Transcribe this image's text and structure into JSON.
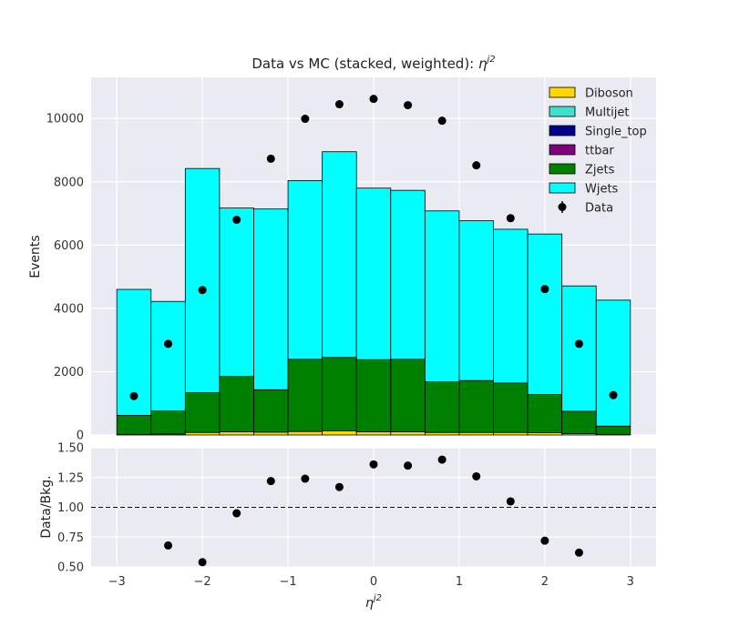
{
  "colors": {
    "Diboson": "#FFD700",
    "Multijet": "#40E0D0",
    "Single_top": "#00008B",
    "ttbar": "#800080",
    "Zjets": "#008000",
    "Wjets": "#00FFFF",
    "data_marker": "#000000",
    "plot_bg": "#EAEAF2",
    "grid": "#FFFFFF"
  },
  "chart_data": [
    {
      "type": "bar",
      "stacked": true,
      "title_main": "Data vs MC (stacked, weighted): ",
      "title_var": "η",
      "title_sup": "j2",
      "ylabel": "Events",
      "ylim": [
        0,
        11300
      ],
      "xlim": [
        -3.3,
        3.3
      ],
      "yticks": [
        0,
        2000,
        4000,
        6000,
        8000,
        10000
      ],
      "grid": true,
      "legend_position": "top-right",
      "bin_edges": [
        -3.0,
        -2.6,
        -2.2,
        -1.8,
        -1.4,
        -1.0,
        -0.6,
        -0.2,
        0.2,
        0.6,
        1.0,
        1.4,
        1.8,
        2.2,
        2.6,
        3.0
      ],
      "series": [
        {
          "name": "Diboson",
          "values": [
            20,
            30,
            80,
            100,
            90,
            110,
            130,
            100,
            100,
            80,
            80,
            80,
            70,
            40,
            20
          ]
        },
        {
          "name": "Multijet",
          "values": [
            0,
            0,
            0,
            0,
            0,
            0,
            0,
            0,
            0,
            0,
            0,
            0,
            0,
            0,
            0
          ]
        },
        {
          "name": "Single_top",
          "values": [
            0,
            0,
            0,
            0,
            0,
            0,
            0,
            0,
            0,
            0,
            0,
            0,
            0,
            0,
            0
          ]
        },
        {
          "name": "ttbar",
          "values": [
            0,
            0,
            0,
            0,
            0,
            0,
            0,
            0,
            0,
            0,
            0,
            0,
            0,
            0,
            0
          ]
        },
        {
          "name": "Zjets",
          "values": [
            600,
            730,
            1260,
            1750,
            1340,
            2280,
            2320,
            2280,
            2290,
            1600,
            1640,
            1560,
            1210,
            710,
            260
          ]
        },
        {
          "name": "Wjets",
          "values": [
            3980,
            3460,
            7080,
            5320,
            5710,
            5650,
            6500,
            5420,
            5340,
            5400,
            5050,
            4860,
            5070,
            3960,
            3980
          ]
        }
      ],
      "data": {
        "name": "Data",
        "x": [
          -2.8,
          -2.4,
          -2.0,
          -1.6,
          -1.2,
          -0.8,
          -0.4,
          0.0,
          0.4,
          0.8,
          1.2,
          1.6,
          2.0,
          2.4,
          2.8
        ],
        "y": [
          1230,
          2880,
          4580,
          6800,
          8730,
          9990,
          10450,
          10620,
          10420,
          9930,
          8520,
          6850,
          4610,
          2880,
          1260
        ]
      }
    },
    {
      "type": "scatter",
      "ylabel": "Data/Bkg.",
      "xlabel_var": "η",
      "xlabel_sup": "j2",
      "ylim": [
        0.5,
        1.5
      ],
      "yticks": [
        "0.50",
        "0.75",
        "1.00",
        "1.25",
        "1.50"
      ],
      "ytick_values": [
        0.5,
        0.75,
        1.0,
        1.25,
        1.5
      ],
      "xticks": [
        "−3",
        "−2",
        "−1",
        "0",
        "1",
        "2",
        "3"
      ],
      "xtick_values": [
        -3,
        -2,
        -1,
        0,
        1,
        2,
        3
      ],
      "reference_line": 1.0,
      "x": [
        -2.4,
        -2.0,
        -1.6,
        -1.2,
        -0.8,
        -0.4,
        0.0,
        0.4,
        0.8,
        1.2,
        1.6,
        2.0,
        2.4
      ],
      "y": [
        0.68,
        0.54,
        0.95,
        1.22,
        1.24,
        1.17,
        1.36,
        1.35,
        1.4,
        1.26,
        1.05,
        0.72,
        0.62
      ]
    }
  ]
}
